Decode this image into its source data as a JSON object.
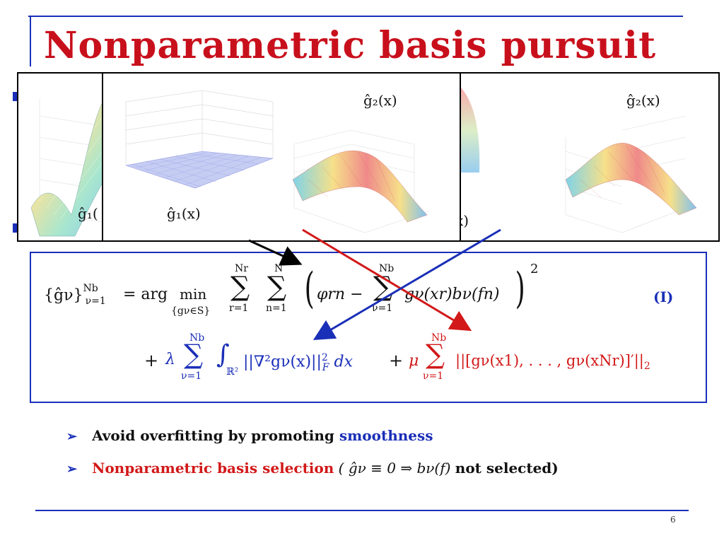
{
  "slide": {
    "title": "Nonparametric basis pursuit",
    "page_number": "6"
  },
  "panels": {
    "back_left": {
      "label": "ĝ₁("
    },
    "front": {
      "label_g1": "ĝ₁(x)",
      "label_g2": "ĝ₂(x)"
    },
    "right": {
      "label_g2": "ĝ₂(x)",
      "label_tail": "x)"
    }
  },
  "equation": {
    "label": "(I)",
    "lhs": "{ĝν}",
    "lhs_sup": "Nb",
    "lhs_sub": "ν=1",
    "eq": "= arg",
    "min": "min",
    "min_sub": "{gν∈S}",
    "sum_r_top": "Nr",
    "sum_r_bottom": "r=1",
    "sum_n_top": "N",
    "sum_n_bottom": "n=1",
    "inner": "φrn −",
    "sum_nu_top": "Nb",
    "sum_nu_bottom": "ν=1",
    "inner_term": "gν(xr)bν(fn)",
    "square": "2",
    "plus1": "+",
    "lambda": "λ",
    "reg1_top": "Nb",
    "reg1_bottom": "ν=1",
    "integral_sub": "ℝ²",
    "reg1_term": "||∇²gν(x)||",
    "reg1_norm": "F",
    "reg1_dx": "dx",
    "plus2": "+",
    "mu": "μ",
    "reg2_top": "Nb",
    "reg2_bottom": "ν=1",
    "reg2_term": "||[gν(x1), . . . , gν(xNr)]′||",
    "reg2_norm": "2"
  },
  "bullets": [
    {
      "prefix": "Avoid overfitting by promoting ",
      "highlight": "smoothness"
    },
    {
      "highlight": "Nonparametric basis selection",
      "middle": " ( ĝν ≡ 0 ⇒ bν(f) ",
      "suffix": "not selected)"
    }
  ],
  "colors": {
    "accent_blue": "#1a2fb8",
    "accent_red": "#d21818",
    "title_red": "#c8101c"
  }
}
